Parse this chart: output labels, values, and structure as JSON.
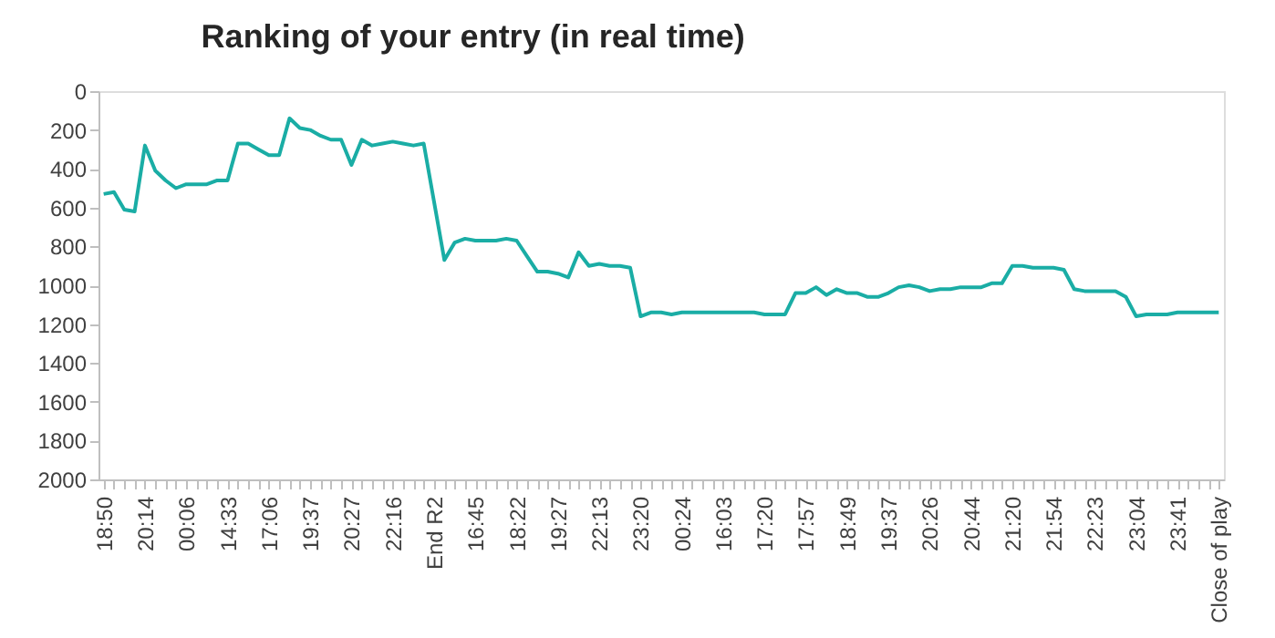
{
  "chart_data": {
    "type": "line",
    "title": "Ranking of your entry (in real time)",
    "categories": [
      "18:50",
      null,
      null,
      null,
      "20:14",
      null,
      null,
      null,
      "00:06",
      null,
      null,
      null,
      "14:33",
      null,
      null,
      null,
      "17:06",
      null,
      null,
      null,
      "19:37",
      null,
      null,
      null,
      "20:27",
      null,
      null,
      null,
      "22:16",
      null,
      null,
      null,
      "End R2",
      null,
      null,
      null,
      "16:45",
      null,
      null,
      null,
      "18:22",
      null,
      null,
      null,
      "19:27",
      null,
      null,
      null,
      "22:13",
      null,
      null,
      null,
      "23:20",
      null,
      null,
      null,
      "00:24",
      null,
      null,
      null,
      "16:03",
      null,
      null,
      null,
      "17:20",
      null,
      null,
      null,
      "17:57",
      null,
      null,
      null,
      "18:49",
      null,
      null,
      null,
      "19:37",
      null,
      null,
      null,
      "20:26",
      null,
      null,
      null,
      "20:44",
      null,
      null,
      null,
      "21:20",
      null,
      null,
      null,
      "21:54",
      null,
      null,
      null,
      "22:23",
      null,
      null,
      null,
      "23:04",
      null,
      null,
      null,
      "23:41",
      null,
      null,
      null,
      "Close of play"
    ],
    "series": [
      {
        "color": "#1aada5",
        "values": [
          530,
          520,
          610,
          620,
          280,
          410,
          460,
          500,
          480,
          480,
          480,
          460,
          460,
          270,
          270,
          300,
          330,
          330,
          140,
          190,
          200,
          230,
          250,
          250,
          380,
          250,
          280,
          270,
          260,
          270,
          280,
          270,
          570,
          870,
          780,
          760,
          770,
          770,
          770,
          760,
          770,
          850,
          930,
          930,
          940,
          960,
          830,
          900,
          890,
          900,
          900,
          910,
          1160,
          1140,
          1140,
          1150,
          1140,
          1140,
          1140,
          1140,
          1140,
          1140,
          1140,
          1140,
          1150,
          1150,
          1150,
          1040,
          1040,
          1010,
          1050,
          1020,
          1040,
          1040,
          1060,
          1060,
          1040,
          1010,
          1000,
          1010,
          1030,
          1020,
          1020,
          1010,
          1010,
          1010,
          990,
          990,
          900,
          900,
          910,
          910,
          910,
          920,
          1020,
          1030,
          1030,
          1030,
          1030,
          1060,
          1160,
          1150,
          1150,
          1150,
          1140,
          1140,
          1140,
          1140,
          1140
        ]
      }
    ],
    "ylim": [
      2000,
      0
    ],
    "yticks": [
      0,
      200,
      400,
      600,
      800,
      1000,
      1200,
      1400,
      1600,
      1800,
      2000
    ],
    "grid": false,
    "legend": false,
    "marker": "none",
    "line_style": "solid"
  }
}
